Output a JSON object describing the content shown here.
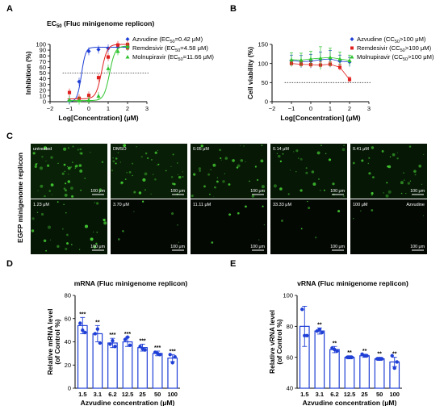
{
  "panels": {
    "a": "A",
    "b": "B",
    "c": "C",
    "d": "D",
    "e": "E"
  },
  "chart_data": [
    {
      "id": "A",
      "type": "line",
      "title_main": "EC",
      "title_sub": "50",
      "title_rest": " (Fluc minigenome replicon)",
      "xlabel": "Log[Concentration] (μM)",
      "ylabel": "Inhibition (%)",
      "xlim": [
        -2,
        3
      ],
      "ylim": [
        0,
        100
      ],
      "xticks": [
        -2,
        -1,
        0,
        1,
        2,
        3
      ],
      "xtick_labels": [
        "−2",
        "−1",
        "0",
        "1",
        "2",
        "3"
      ],
      "yticks": [
        0,
        10,
        20,
        30,
        40,
        50,
        60,
        70,
        80,
        90,
        100
      ],
      "reference_line": 50,
      "series": [
        {
          "name": "Azvudine (EC",
          "sub": "50",
          "suffix": "=0.42 μM)",
          "color": "#1f3fd6",
          "marker": "diamond",
          "x": [
            -1.0,
            -0.5,
            0.0,
            0.5,
            1.0,
            1.5,
            2.0
          ],
          "y": [
            2,
            35,
            88,
            91,
            93,
            95,
            96
          ],
          "ic50": -0.38,
          "hill": 4,
          "top": 95,
          "bottom": 0
        },
        {
          "name": "Remdesivir (EC",
          "sub": "50",
          "suffix": "=4.58 μM)",
          "color": "#e02020",
          "marker": "square",
          "x": [
            -1.0,
            -0.5,
            0.0,
            0.5,
            1.0,
            1.5,
            2.0
          ],
          "y": [
            16,
            6,
            11,
            42,
            78,
            99,
            100
          ],
          "ic50": 0.66,
          "hill": 3,
          "top": 100,
          "bottom": 5
        },
        {
          "name": "Molnupiravir (EC",
          "sub": "50",
          "suffix": "=11.66 μM)",
          "color": "#2ec42e",
          "marker": "triangle",
          "x": [
            -1.0,
            -0.5,
            0.0,
            0.5,
            1.0,
            1.5,
            2.0
          ],
          "y": [
            3,
            2,
            3,
            10,
            58,
            88,
            96
          ],
          "ic50": 1.07,
          "hill": 3,
          "top": 97,
          "bottom": 2
        }
      ]
    },
    {
      "id": "B",
      "type": "line",
      "xlabel": "Log[Concentration] (μM)",
      "ylabel": "Cell viability (%)",
      "xlim": [
        -2,
        3
      ],
      "ylim": [
        0,
        150
      ],
      "xticks": [
        -2,
        -1,
        0,
        1,
        2,
        3
      ],
      "xtick_labels": [
        "−2",
        "−1",
        "0",
        "1",
        "2",
        "3"
      ],
      "yticks": [
        0,
        50,
        100,
        150
      ],
      "reference_line": 50,
      "series": [
        {
          "name": "Azvudine (CC",
          "sub": "50",
          "suffix": ">100 μM)",
          "color": "#1f3fd6",
          "marker": "diamond",
          "x": [
            -1.0,
            -0.5,
            0.0,
            0.5,
            1.0,
            1.5,
            2.0
          ],
          "y": [
            108,
            105,
            106,
            110,
            112,
            106,
            104
          ],
          "err": [
            14,
            16,
            18,
            20,
            22,
            16,
            12
          ]
        },
        {
          "name": "Remdesivir (CC",
          "sub": "50",
          "suffix": ">100 μM)",
          "color": "#e02020",
          "marker": "square",
          "x": [
            -1.0,
            -0.5,
            0.0,
            0.5,
            1.0,
            1.5,
            2.0
          ],
          "y": [
            100,
            98,
            97,
            96,
            98,
            90,
            58
          ],
          "err": [
            6,
            6,
            8,
            8,
            6,
            8,
            6
          ]
        },
        {
          "name": "Molnupiravir (CC",
          "sub": "50",
          "suffix": ">100 μM)",
          "color": "#2ec42e",
          "marker": "triangle",
          "x": [
            -1.0,
            -0.5,
            0.0,
            0.5,
            1.0,
            1.5,
            2.0
          ],
          "y": [
            110,
            109,
            112,
            114,
            116,
            112,
            108
          ],
          "err": [
            18,
            18,
            20,
            30,
            24,
            18,
            14
          ]
        }
      ]
    },
    {
      "id": "D",
      "type": "bar",
      "title": "mRNA (Fluc minigenome replicon)",
      "xlabel": "Azvudine concentration (μM)",
      "ylabel_lines": [
        "Relative mRNA level",
        "(of Control %)"
      ],
      "ylim": [
        0,
        80
      ],
      "yticks": [
        0,
        20,
        40,
        60,
        80
      ],
      "categories": [
        "1.5",
        "3.1",
        "6.2",
        "12.5",
        "25",
        "50",
        "100"
      ],
      "values": [
        54,
        47,
        39,
        40,
        35,
        30,
        26
      ],
      "err": [
        7,
        7,
        4,
        4,
        3,
        2,
        3
      ],
      "points": [
        [
          56,
          50,
          48
        ],
        [
          47,
          51,
          39
        ],
        [
          38,
          41,
          36
        ],
        [
          42,
          44,
          37
        ],
        [
          36,
          34,
          33
        ],
        [
          31,
          30,
          29
        ],
        [
          29,
          22,
          27
        ]
      ],
      "significance": [
        "***",
        "**",
        "***",
        "***",
        "***",
        "***",
        "***"
      ]
    },
    {
      "id": "E",
      "type": "bar",
      "title": "vRNA (Fluc minigenome replicon)",
      "xlabel": "Azvudine concentration (μM)",
      "ylabel_lines": [
        "Relative vRNA level",
        "(of Control %)"
      ],
      "ylim": [
        40,
        100
      ],
      "yticks": [
        40,
        60,
        80,
        100
      ],
      "categories": [
        "1.5",
        "3.1",
        "6.2",
        "12.5",
        "25",
        "50",
        "100"
      ],
      "values": [
        80,
        77,
        65,
        60,
        61,
        59,
        57
      ],
      "err": [
        13,
        2,
        2,
        1,
        1,
        1,
        3
      ],
      "points": [
        [
          91,
          74,
          74
        ],
        [
          77,
          78,
          76
        ],
        [
          66,
          65,
          64
        ],
        [
          60,
          60,
          60
        ],
        [
          62,
          61,
          61
        ],
        [
          59,
          59,
          59
        ],
        [
          61,
          53,
          57
        ]
      ],
      "significance": [
        "",
        "**",
        "**",
        "**",
        "**",
        "**",
        "**"
      ]
    }
  ],
  "micrographs": {
    "side_label": "EGFP minigenome replicon",
    "scale_bar": "100 μm",
    "row1": [
      {
        "label": "untreated",
        "intensity": 0.9
      },
      {
        "label": "DMSO",
        "intensity": 0.8
      },
      {
        "label": "0.05 μM",
        "intensity": 0.65
      },
      {
        "label": "0.14 μM",
        "intensity": 0.55
      },
      {
        "label": "0.41 μM",
        "intensity": 0.6
      }
    ],
    "row2": [
      {
        "label": "1.23 μM",
        "intensity": 0.5
      },
      {
        "label": "3.70 μM",
        "intensity": 0.15
      },
      {
        "label": "11.11 μM",
        "intensity": 0.12
      },
      {
        "label": "33.33 μM",
        "intensity": 0.1
      },
      {
        "label": "100 μM",
        "intensity": 0.08,
        "label2": "Azvudine"
      }
    ]
  }
}
